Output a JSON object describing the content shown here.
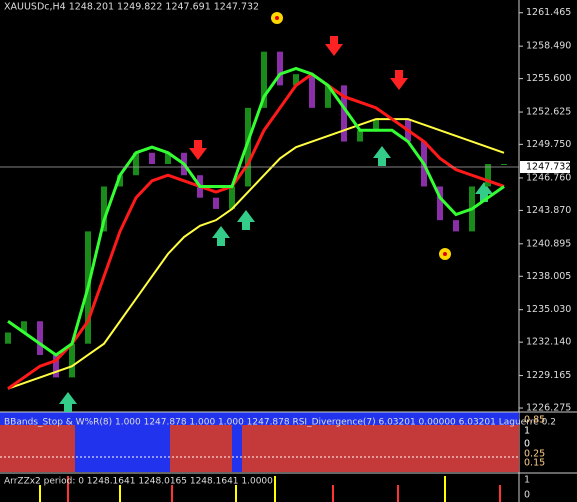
{
  "chart_data": {
    "type": "candlestick",
    "title": "XAUUSDc,H4 1248.201 1249.822 1247.691 1247.732",
    "open": [
      1232,
      1233,
      1234,
      1231,
      1229,
      1232,
      1242,
      1246,
      1247,
      1249,
      1248,
      1249,
      1247,
      1245,
      1244,
      1246,
      1253,
      1258,
      1255,
      1256,
      1253,
      1255,
      1250,
      1251,
      1252,
      1252,
      1250,
      1246,
      1243,
      1242,
      1246,
      1248
    ],
    "close": [
      1233,
      1234,
      1231,
      1229,
      1232,
      1242,
      1246,
      1247,
      1249,
      1248,
      1249,
      1247,
      1245,
      1244,
      1246,
      1253,
      1258,
      1255,
      1256,
      1253,
      1255,
      1250,
      1251,
      1252,
      1252,
      1250,
      1246,
      1243,
      1242,
      1246,
      1248,
      1248
    ],
    "up_color": "#1a8a1a",
    "down_color": "#8a2fa8",
    "series": [
      {
        "color": "#ffff40",
        "values": [
          1228,
          1228.5,
          1229,
          1229.5,
          1230,
          1231,
          1232,
          1234,
          1236,
          1238,
          1240,
          1241.5,
          1242.5,
          1243,
          1244,
          1245.5,
          1247,
          1248.5,
          1249.5,
          1250,
          1250.5,
          1251,
          1251.5,
          1252,
          1252,
          1252,
          1251.5,
          1251,
          1250.5,
          1250,
          1249.5,
          1249
        ]
      },
      {
        "color": "#ff1a1a",
        "values": [
          1228,
          1229,
          1230,
          1230.5,
          1232,
          1234,
          1238,
          1242,
          1245,
          1246.5,
          1247,
          1246.5,
          1246,
          1245.5,
          1246,
          1248,
          1251,
          1253,
          1255,
          1256,
          1255,
          1254,
          1253.5,
          1253,
          1252,
          1251,
          1250,
          1248.5,
          1247.5,
          1247,
          1246.5,
          1246
        ]
      },
      {
        "color": "#33ff33",
        "values": [
          1234,
          1233,
          1232,
          1231,
          1232,
          1237,
          1243,
          1247,
          1249,
          1249.5,
          1249,
          1248,
          1246,
          1246,
          1246,
          1250,
          1254,
          1256,
          1256.5,
          1256,
          1255,
          1253,
          1251,
          1251,
          1251,
          1250,
          1248,
          1245,
          1243.5,
          1244,
          1245,
          1246
        ]
      }
    ],
    "current": 1247.732,
    "ylim": [
      1226.1,
      1262.6
    ],
    "yticks": [
      1261.465,
      {
        "value": 1258.49,
        "label": "1258.490"
      },
      {
        "value": 1255.6,
        "label": "1255.600"
      },
      1252.625,
      {
        "value": 1249.75,
        "label": "1249.750"
      },
      {
        "value": 1246.76,
        "label": "1246.760"
      },
      {
        "value": 1243.87,
        "label": "1243.870"
      },
      1240.895,
      1238.005,
      {
        "value": 1235.03,
        "label": "1235.030"
      },
      {
        "value": 1232.14,
        "label": "1232.140"
      },
      1229.165,
      1226.275
    ]
  },
  "indicator1": {
    "label": "BBands_Stop & W%R(8) 1.000 1247.878 1.000 1.000 1247.878 RSI_Divergence(7) 6.03201 0.00000 6.03201 Laguerre 0.2",
    "scale": [
      "0.85",
      "1",
      "0",
      "0.25",
      "0.15"
    ]
  },
  "indicator2": {
    "label": "ArrZZx2 period: 0 1248.1641 1248.0165 1248.1641 1.0000",
    "scale": [
      "1",
      "0"
    ]
  }
}
